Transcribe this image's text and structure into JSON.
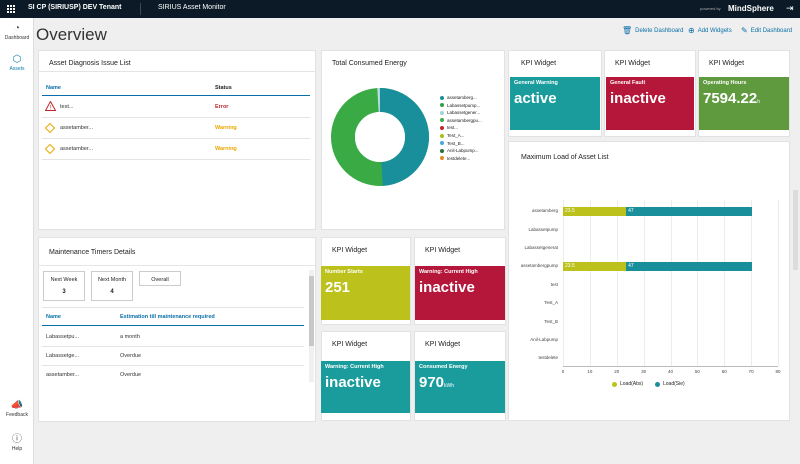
{
  "topbar": {
    "tenant": "SI CP (SIRIUSP) DEV Tenant",
    "app": "SIRIUS Asset Monitor",
    "powered": "powered by",
    "brand": "MindSphere"
  },
  "sidebar": {
    "dashboard": "Dashboard",
    "assets": "Assets",
    "feedback": "Feedback",
    "help": "Help"
  },
  "page": {
    "title": "Overview",
    "delete": "Delete Dashboard",
    "add": "Add Widgets",
    "edit": "Edit Dashboard"
  },
  "diagnosis": {
    "title": "Asset Diagnosis Issue List",
    "col_name": "Name",
    "col_status": "Status",
    "rows": [
      {
        "name": "test...",
        "status": "Error",
        "icon": "warning-triangle-red"
      },
      {
        "name": "assetamber...",
        "status": "Warning",
        "icon": "warning-diamond-yellow"
      },
      {
        "name": "assetamber...",
        "status": "Warning",
        "icon": "warning-diamond-yellow"
      }
    ]
  },
  "energy": {
    "title": "Total Consumed Energy",
    "legend": [
      {
        "label": "assetamberg...",
        "color": "#1a8f9c"
      },
      {
        "label": "Labassetpump...",
        "color": "#2fa04a"
      },
      {
        "label": "Labassetgener...",
        "color": "#9fd4d8"
      },
      {
        "label": "assetambergpu...",
        "color": "#3fae49"
      },
      {
        "label": "test...",
        "color": "#c0262d"
      },
      {
        "label": "Test_A...",
        "color": "#a6c01a"
      },
      {
        "label": "Test_B...",
        "color": "#4aa8d8"
      },
      {
        "label": "Anil-Labpump...",
        "color": "#2a6e3a"
      },
      {
        "label": "testdelete...",
        "color": "#e08a2a"
      }
    ]
  },
  "kpis": [
    {
      "title": "KPI Widget",
      "label": "General Warning",
      "value": "active",
      "unit": "",
      "color": "#1a9c9c"
    },
    {
      "title": "KPI Widget",
      "label": "General Fault",
      "value": "inactive",
      "unit": "",
      "color": "#b5173a"
    },
    {
      "title": "KPI Widget",
      "label": "Operating Hours",
      "value": "7594.22",
      "unit": "h",
      "color": "#5f9a3e"
    },
    {
      "title": "KPI Widget",
      "label": "Number Starts",
      "value": "251",
      "unit": "",
      "color": "#bcc11c"
    },
    {
      "title": "KPI Widget",
      "label": "Warning: Current High",
      "value": "inactive",
      "unit": "",
      "color": "#b5173a"
    },
    {
      "title": "KPI Widget",
      "label": "Warning: Current High",
      "value": "inactive",
      "unit": "",
      "color": "#1a9c9c"
    },
    {
      "title": "KPI Widget",
      "label": "Consumed Energy",
      "value": "970",
      "unit": "kWh",
      "color": "#1a9c9c"
    }
  ],
  "maintenance": {
    "title": "Maintenance Timers Details",
    "tabs": [
      {
        "label": "Next Week",
        "count": "3"
      },
      {
        "label": "Next Month",
        "count": "4"
      },
      {
        "label": "Overall",
        "count": ""
      }
    ],
    "col_name": "Name",
    "col_est": "Estimation till maintenance required",
    "rows": [
      {
        "name": "Labassetpu...",
        "est": "a month"
      },
      {
        "name": "Labassetge...",
        "est": "Overdue"
      },
      {
        "name": "assetamber...",
        "est": "Overdue"
      }
    ]
  },
  "chart_data": {
    "type": "bar",
    "title": "Maximum Load of Asset List",
    "categories": [
      "assetamberg",
      "Labassetpump",
      "Labassetgenerat",
      "assetambergpump",
      "test",
      "Test_A",
      "Test_B",
      "Anil-Labpump",
      "testdelete"
    ],
    "series": [
      {
        "name": "Load(Abs)",
        "color": "#bcc11c",
        "values": [
          23.5,
          null,
          null,
          23.5,
          null,
          null,
          null,
          null,
          null
        ]
      },
      {
        "name": "Load(Sie)",
        "color": "#1a8f9c",
        "values": [
          47,
          null,
          null,
          47,
          null,
          null,
          null,
          null,
          null
        ]
      }
    ],
    "xlim": [
      0,
      80
    ],
    "xticks": [
      0,
      10,
      20,
      30,
      40,
      50,
      60,
      70,
      80
    ],
    "stacked": true,
    "legend_position": "bottom"
  }
}
